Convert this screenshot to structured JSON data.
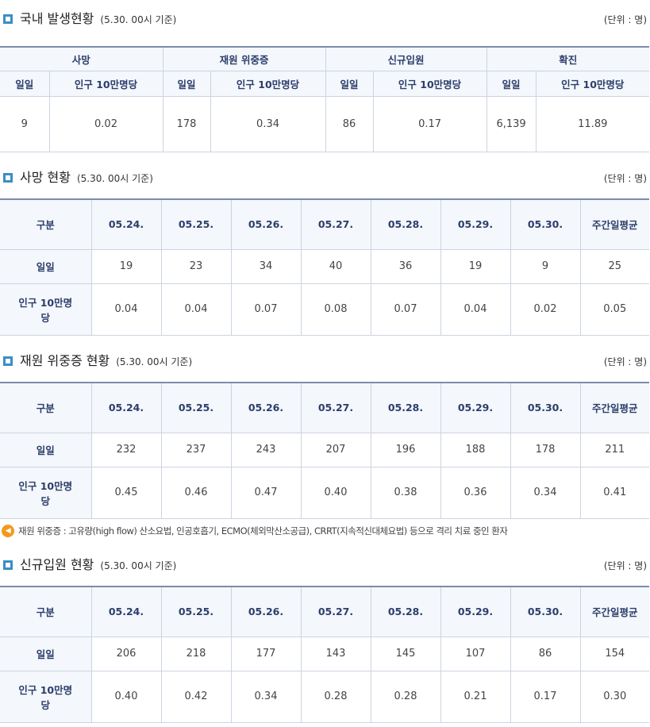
{
  "s1": {
    "title": "국내 발생현황",
    "sub": "(5.30. 00시 기준)",
    "unit": "(단위 : 명)",
    "groups": [
      "사망",
      "재원 위중증",
      "신규입원",
      "확진"
    ],
    "daily": "일일",
    "per": "인구 10만명당",
    "values": [
      [
        "9",
        "0.02"
      ],
      [
        "178",
        "0.34"
      ],
      [
        "86",
        "0.17"
      ],
      [
        "6,139",
        "11.89"
      ]
    ]
  },
  "dates": [
    "05.24.",
    "05.25.",
    "05.26.",
    "05.27.",
    "05.28.",
    "05.29.",
    "05.30."
  ],
  "label_col": "구분",
  "avg": "주간일평균",
  "row_daily": "일일",
  "row_per": "인구 10만명당",
  "s2": {
    "title": "사망 현황",
    "sub": "(5.30. 00시 기준)",
    "unit": "(단위 : 명)",
    "daily": [
      "19",
      "23",
      "34",
      "40",
      "36",
      "19",
      "9",
      "25"
    ],
    "per": [
      "0.04",
      "0.04",
      "0.07",
      "0.08",
      "0.07",
      "0.04",
      "0.02",
      "0.05"
    ]
  },
  "s3": {
    "title": "재원 위중증 현황",
    "sub": "(5.30. 00시 기준)",
    "unit": "(단위 : 명)",
    "daily": [
      "232",
      "237",
      "243",
      "207",
      "196",
      "188",
      "178",
      "211"
    ],
    "per": [
      "0.45",
      "0.46",
      "0.47",
      "0.40",
      "0.38",
      "0.36",
      "0.34",
      "0.41"
    ]
  },
  "note": "재원 위중증 : 고유량(high flow) 산소요법, 인공호흡기, ECMO(체외막산소공급), CRRT(지속적신대체요법) 등으로 격리 치료 중인 환자",
  "s4": {
    "title": "신규입원 현황",
    "sub": "(5.30. 00시 기준)",
    "unit": "(단위 : 명)",
    "daily": [
      "206",
      "218",
      "177",
      "143",
      "145",
      "107",
      "86",
      "154"
    ],
    "per": [
      "0.40",
      "0.42",
      "0.34",
      "0.28",
      "0.28",
      "0.21",
      "0.17",
      "0.30"
    ]
  }
}
